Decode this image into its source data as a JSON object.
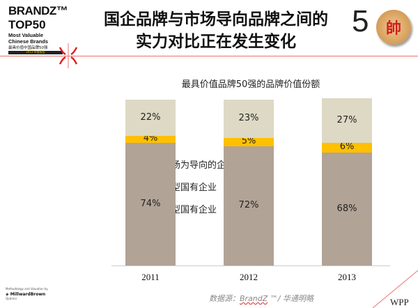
{
  "logo": {
    "line1": "BRANDZ™",
    "line2": "TOP50",
    "line3": "Most Valuable",
    "line4": "Chinese Brands",
    "line5": "最具价值中国品牌50强",
    "line6": "2013 年度报告"
  },
  "title": {
    "line1": "国企品牌与市场导向品牌之间的",
    "line2": "实力对比正在发生变化"
  },
  "badge": {
    "number": "5",
    "coin_char": "帥"
  },
  "chart_data": {
    "type": "bar",
    "stacked": true,
    "title": "最具价值品牌50强的品牌价值份额",
    "categories": [
      "2011",
      "2012",
      "2013"
    ],
    "series": [
      {
        "name": "战略型国有企业",
        "values": [
          74,
          72,
          68
        ],
        "labels": [
          "74%",
          "72%",
          "68%"
        ],
        "color": "#b1a396"
      },
      {
        "name": "竞争型国有企业",
        "values": [
          4,
          5,
          6
        ],
        "labels": [
          "4%",
          "5%",
          "6%"
        ],
        "color": "#ffc000"
      },
      {
        "name": "以市场为导向的企业",
        "values": [
          22,
          23,
          27
        ],
        "labels": [
          "22%",
          "23%",
          "27%"
        ],
        "color": "#ddd9c4"
      }
    ],
    "legend_order": [
      "以市场为导向的企业",
      "竞争型国有企业",
      "战略型国有企业"
    ],
    "ylim": [
      0,
      100
    ],
    "legend": "left"
  },
  "footer": {
    "methodology": "Methodology and Valuation by",
    "company": "MillwardBrown",
    "company_sub": "Optimor",
    "source_prefix": "数据源：",
    "source_brand": "BrandZ",
    "source_suffix": " ™/ 华通明略",
    "wpp": "WPP"
  }
}
